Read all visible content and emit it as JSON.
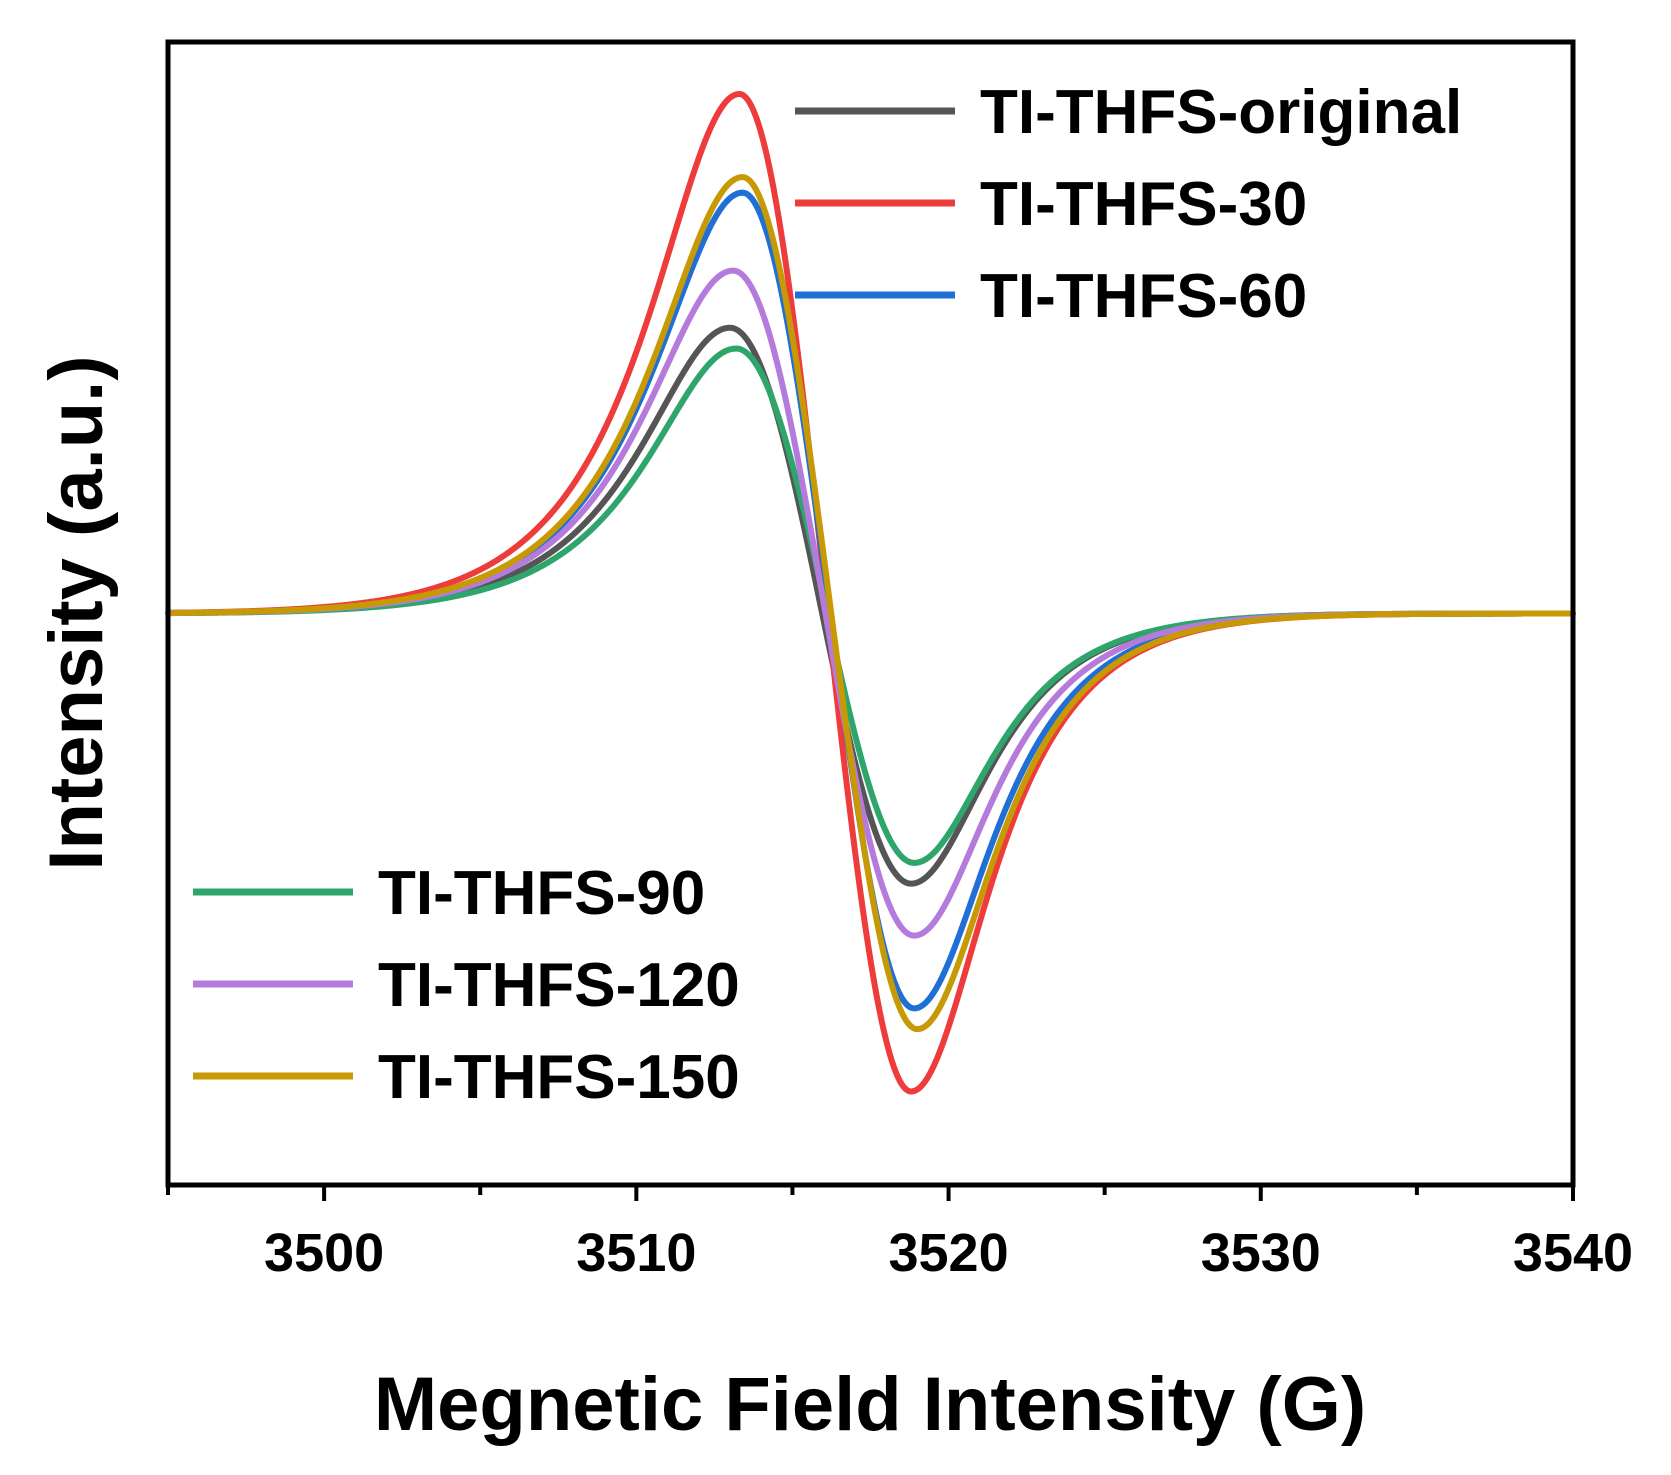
{
  "chart_data": {
    "type": "line",
    "title": "",
    "xlabel": "Megnetic Field Intensity (G)",
    "ylabel": "Intensity (a.u.)",
    "xlim": [
      3495,
      3540
    ],
    "ylim": [
      -1.1,
      1.1
    ],
    "xticks": [
      3500,
      3510,
      3520,
      3530,
      3540
    ],
    "yticks_visible": false,
    "baseline": 0,
    "legend_placement": [
      "top-right",
      "bottom-left"
    ],
    "series": [
      {
        "name": "TI-THFS-original",
        "color": "#555555",
        "peak_x": 3513.0,
        "peak_y": 0.55,
        "trough_x": 3518.8,
        "trough_y": -0.52,
        "legend_group": "top-right"
      },
      {
        "name": "TI-THFS-30",
        "color": "#ee3b3b",
        "peak_x": 3513.3,
        "peak_y": 1.0,
        "trough_x": 3518.8,
        "trough_y": -0.92,
        "legend_group": "top-right"
      },
      {
        "name": "TI-THFS-60",
        "color": "#1f6fd6",
        "peak_x": 3513.4,
        "peak_y": 0.81,
        "trough_x": 3518.9,
        "trough_y": -0.76,
        "legend_group": "top-right"
      },
      {
        "name": "TI-THFS-90",
        "color": "#2ea66b",
        "peak_x": 3513.2,
        "peak_y": 0.51,
        "trough_x": 3518.9,
        "trough_y": -0.48,
        "legend_group": "bottom-left"
      },
      {
        "name": "TI-THFS-120",
        "color": "#b57bdc",
        "peak_x": 3513.1,
        "peak_y": 0.66,
        "trough_x": 3518.9,
        "trough_y": -0.62,
        "legend_group": "bottom-left"
      },
      {
        "name": "TI-THFS-150",
        "color": "#c79a05",
        "peak_x": 3513.4,
        "peak_y": 0.84,
        "trough_x": 3519.0,
        "trough_y": -0.8,
        "legend_group": "bottom-left"
      }
    ]
  }
}
